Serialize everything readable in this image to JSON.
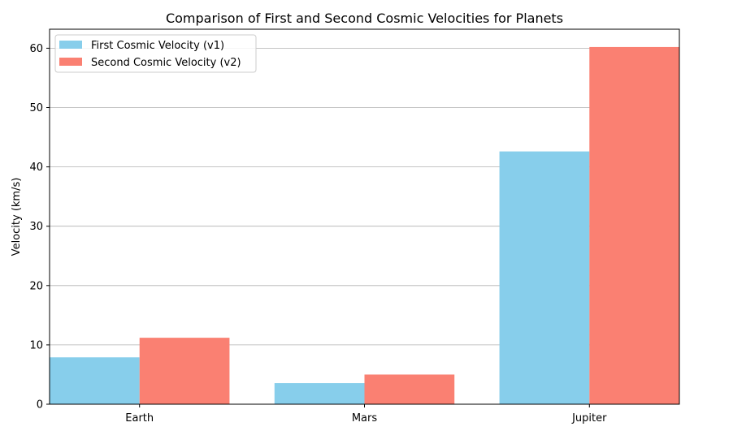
{
  "chart_data": {
    "type": "bar",
    "title": "Comparison of First and Second Cosmic Velocities for Planets",
    "xlabel": "",
    "ylabel": "Velocity (km/s)",
    "categories": [
      "Earth",
      "Mars",
      "Jupiter"
    ],
    "series": [
      {
        "name": "First Cosmic Velocity (v1)",
        "color": "#87ceeb",
        "values": [
          7.9,
          3.55,
          42.6
        ]
      },
      {
        "name": "Second Cosmic Velocity (v2)",
        "color": "#fa8072",
        "values": [
          11.2,
          5.0,
          60.2
        ]
      }
    ],
    "ylim": [
      0,
      63.2
    ],
    "yticks": [
      0,
      10,
      20,
      30,
      40,
      50,
      60
    ],
    "grid": "horizontal",
    "legend_position": "top-left"
  }
}
